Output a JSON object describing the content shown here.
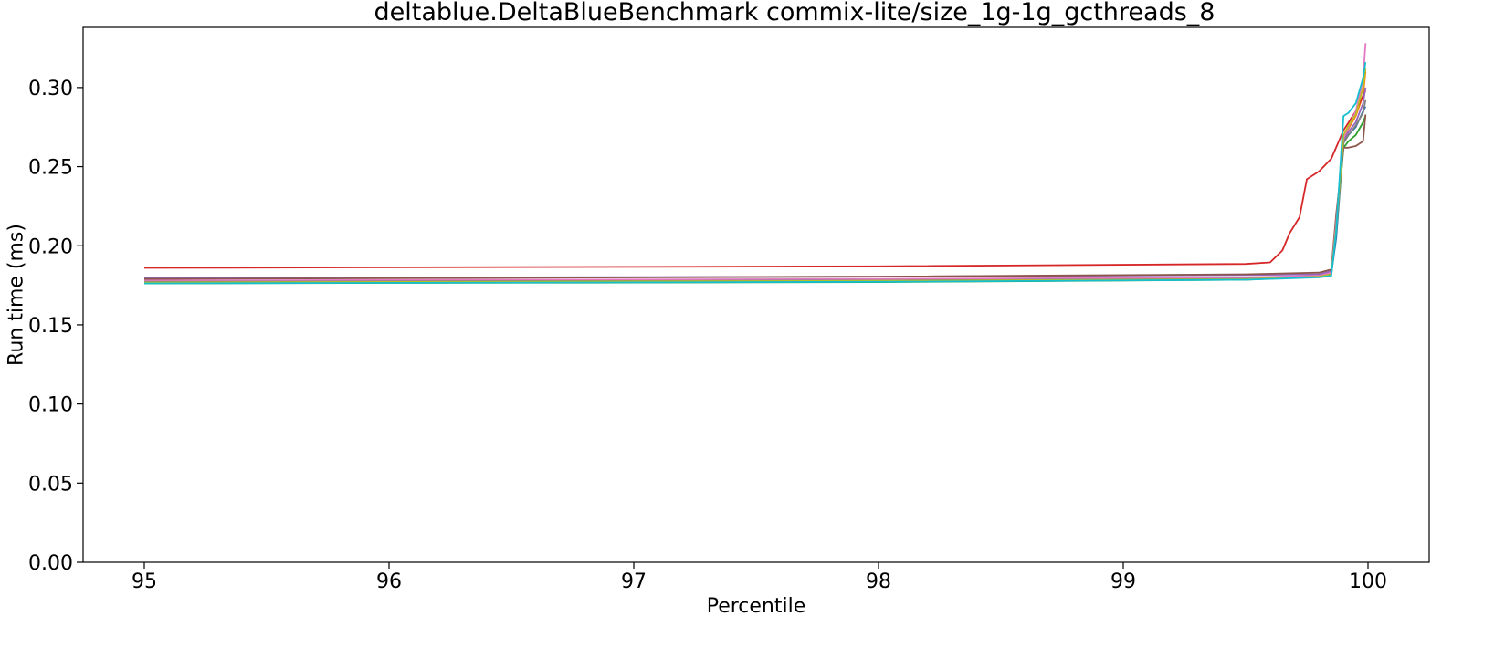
{
  "chart_data": {
    "type": "line",
    "title": "deltablue.DeltaBlueBenchmark commix-lite/size_1g-1g_gcthreads_8",
    "xlabel": "Percentile",
    "ylabel": "Run time (ms)",
    "xlim": [
      94.75,
      100.25
    ],
    "ylim": [
      0.0,
      0.338
    ],
    "xticks": [
      95,
      96,
      97,
      98,
      99,
      100
    ],
    "yticks": [
      0.0,
      0.05,
      0.1,
      0.15,
      0.2,
      0.25,
      0.3
    ],
    "xtick_labels": [
      "95",
      "96",
      "97",
      "98",
      "99",
      "100"
    ],
    "ytick_labels": [
      "0.00",
      "0.05",
      "0.10",
      "0.15",
      "0.20",
      "0.25",
      "0.30"
    ],
    "grid": false,
    "legend": "none",
    "series": [
      {
        "color": "#1f77b4",
        "x": [
          95,
          98,
          99.5,
          99.8,
          99.85,
          99.87,
          99.9,
          99.92,
          99.95,
          99.98,
          99.99
        ],
        "y": [
          0.1775,
          0.1785,
          0.1795,
          0.1805,
          0.182,
          0.205,
          0.265,
          0.27,
          0.275,
          0.285,
          0.288
        ]
      },
      {
        "color": "#ff7f0e",
        "x": [
          95,
          98,
          99.5,
          99.8,
          99.85,
          99.87,
          99.9,
          99.92,
          99.95,
          99.98,
          99.99
        ],
        "y": [
          0.1765,
          0.1775,
          0.179,
          0.181,
          0.183,
          0.215,
          0.268,
          0.274,
          0.282,
          0.295,
          0.31
        ]
      },
      {
        "color": "#2ca02c",
        "x": [
          95,
          98,
          99.5,
          99.8,
          99.85,
          99.87,
          99.9,
          99.92,
          99.95,
          99.98,
          99.99
        ],
        "y": [
          0.1762,
          0.177,
          0.1785,
          0.1805,
          0.1825,
          0.21,
          0.262,
          0.266,
          0.27,
          0.278,
          0.282
        ]
      },
      {
        "color": "#d62728",
        "x": [
          95,
          98,
          99.5,
          99.6,
          99.65,
          99.68,
          99.72,
          99.75,
          99.8,
          99.85,
          99.9,
          99.95,
          99.99
        ],
        "y": [
          0.186,
          0.187,
          0.1885,
          0.1895,
          0.197,
          0.208,
          0.218,
          0.242,
          0.247,
          0.255,
          0.273,
          0.285,
          0.298
        ]
      },
      {
        "color": "#9467bd",
        "x": [
          95,
          98,
          99.5,
          99.8,
          99.85,
          99.87,
          99.9,
          99.92,
          99.95,
          99.98,
          99.99
        ],
        "y": [
          0.1795,
          0.1805,
          0.1815,
          0.182,
          0.184,
          0.21,
          0.266,
          0.272,
          0.278,
          0.29,
          0.3
        ]
      },
      {
        "color": "#8c564b",
        "x": [
          95,
          98,
          99.5,
          99.8,
          99.85,
          99.87,
          99.9,
          99.92,
          99.95,
          99.98,
          99.99
        ],
        "y": [
          0.179,
          0.1805,
          0.182,
          0.183,
          0.185,
          0.22,
          0.262,
          0.262,
          0.263,
          0.266,
          0.283
        ]
      },
      {
        "color": "#e377c2",
        "x": [
          95,
          98,
          99.5,
          99.8,
          99.85,
          99.87,
          99.9,
          99.92,
          99.95,
          99.98,
          99.99
        ],
        "y": [
          0.178,
          0.179,
          0.18,
          0.181,
          0.183,
          0.215,
          0.268,
          0.275,
          0.285,
          0.305,
          0.328
        ]
      },
      {
        "color": "#7f7f7f",
        "x": [
          95,
          98,
          99.5,
          99.8,
          99.85,
          99.87,
          99.9,
          99.92,
          99.95,
          99.98,
          99.99
        ],
        "y": [
          0.1772,
          0.178,
          0.179,
          0.1805,
          0.182,
          0.21,
          0.265,
          0.27,
          0.276,
          0.284,
          0.292
        ]
      },
      {
        "color": "#bcbd22",
        "x": [
          95,
          98,
          99.5,
          99.8,
          99.85,
          99.87,
          99.9,
          99.92,
          99.95,
          99.98,
          99.99
        ],
        "y": [
          0.1768,
          0.1778,
          0.1788,
          0.1805,
          0.182,
          0.212,
          0.27,
          0.276,
          0.283,
          0.3,
          0.312
        ]
      },
      {
        "color": "#17becf",
        "x": [
          95,
          98,
          99.5,
          99.8,
          99.85,
          99.87,
          99.9,
          99.92,
          99.95,
          99.98,
          99.99
        ],
        "y": [
          0.1762,
          0.1772,
          0.1785,
          0.18,
          0.181,
          0.21,
          0.282,
          0.284,
          0.29,
          0.306,
          0.316
        ]
      }
    ]
  }
}
